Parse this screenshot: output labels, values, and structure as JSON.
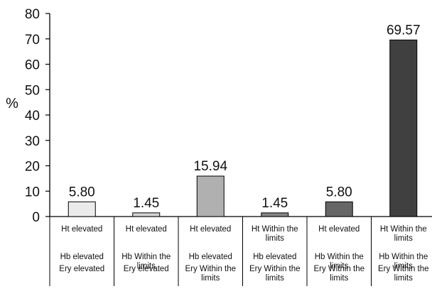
{
  "chart_data": {
    "type": "bar",
    "title": "",
    "xlabel": "",
    "ylabel": "%",
    "ylim": [
      0,
      80
    ],
    "yticks": [
      0,
      10,
      20,
      30,
      40,
      50,
      60,
      70,
      80
    ],
    "grid": false,
    "categories": [
      [
        "Ht elevated",
        "Hb elevated",
        "Ery elevated"
      ],
      [
        "Ht elevated",
        "Hb Within the limits",
        "Ery elevated"
      ],
      [
        "Ht elevated",
        "Hb elevated",
        "Ery Within the limits"
      ],
      [
        "Ht Within the limits",
        "Hb elevated",
        "Ery Within the limits"
      ],
      [
        "Ht elevated",
        "Hb Within the limits",
        "Ery Within the limits"
      ],
      [
        "Ht Within the limits",
        "Hb Within the limits",
        "Ery Within the limits"
      ]
    ],
    "values": [
      5.8,
      1.45,
      15.94,
      1.45,
      5.8,
      69.57
    ],
    "data_labels": [
      "5.80",
      "1.45",
      "15.94",
      "1.45",
      "5.80",
      "69.57"
    ],
    "bar_colors": [
      "#ebebeb",
      "#d4d4d4",
      "#b0b0b0",
      "#858585",
      "#666666",
      "#404040"
    ]
  }
}
